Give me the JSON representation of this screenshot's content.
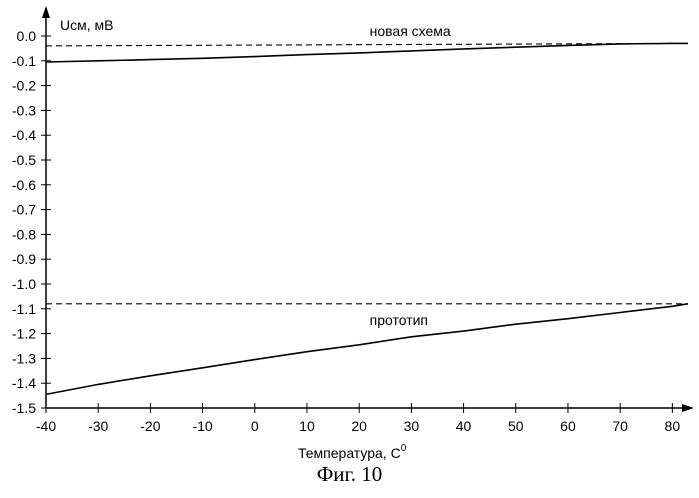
{
  "chart_data": {
    "type": "line",
    "ylabel": "Uсм, мВ",
    "xlabel": "Температура, С",
    "xlabel_superscript": "0",
    "xlim": [
      -40,
      83
    ],
    "ylim": [
      -1.5,
      0.05
    ],
    "x_ticks": [
      -40,
      -30,
      -20,
      -10,
      0,
      10,
      20,
      30,
      40,
      50,
      60,
      70,
      80
    ],
    "y_ticks": [
      0.0,
      -0.1,
      -0.2,
      -0.3,
      -0.4,
      -0.5,
      -0.6,
      -0.7,
      -0.8,
      -0.9,
      -1.0,
      -1.1,
      -1.2,
      -1.3,
      -1.4,
      -1.5
    ],
    "x_tick_labels": [
      "-40",
      "-30",
      "-20",
      "-10",
      "0",
      "10",
      "20",
      "30",
      "40",
      "50",
      "60",
      "70",
      "80"
    ],
    "y_tick_labels": [
      "0.0",
      "-0.1",
      "-0.2",
      "-0.3",
      "-0.4",
      "-0.5",
      "-0.6",
      "-0.7",
      "-0.8",
      "-0.9",
      "-1.0",
      "-1.1",
      "-1.2",
      "-1.3",
      "-1.4",
      "-1.5"
    ],
    "grid": false,
    "series": [
      {
        "group": "новая схема",
        "style": "solid",
        "x": [
          -40,
          -30,
          -20,
          -10,
          0,
          10,
          20,
          30,
          40,
          50,
          60,
          70,
          80,
          83
        ],
        "y": [
          -0.105,
          -0.1,
          -0.095,
          -0.09,
          -0.083,
          -0.075,
          -0.068,
          -0.06,
          -0.052,
          -0.045,
          -0.038,
          -0.032,
          -0.03,
          -0.03
        ]
      },
      {
        "group": "новая схема",
        "style": "dashed",
        "x": [
          -40,
          83
        ],
        "y": [
          -0.04,
          -0.03
        ]
      },
      {
        "group": "прототип",
        "style": "solid",
        "x": [
          -40,
          -30,
          -20,
          -10,
          0,
          10,
          20,
          30,
          40,
          50,
          60,
          70,
          80,
          83
        ],
        "y": [
          -1.445,
          -1.405,
          -1.37,
          -1.338,
          -1.305,
          -1.273,
          -1.245,
          -1.213,
          -1.19,
          -1.162,
          -1.14,
          -1.115,
          -1.09,
          -1.08
        ]
      },
      {
        "group": "прототип",
        "style": "dashed",
        "x": [
          -40,
          83
        ],
        "y": [
          -1.08,
          -1.08
        ]
      }
    ],
    "annotations": [
      {
        "text": "новая схема",
        "x": 22,
        "y": 0.0
      },
      {
        "text": "прототип",
        "x": 22,
        "y": -1.165
      }
    ],
    "caption": "Фиг. 10"
  }
}
